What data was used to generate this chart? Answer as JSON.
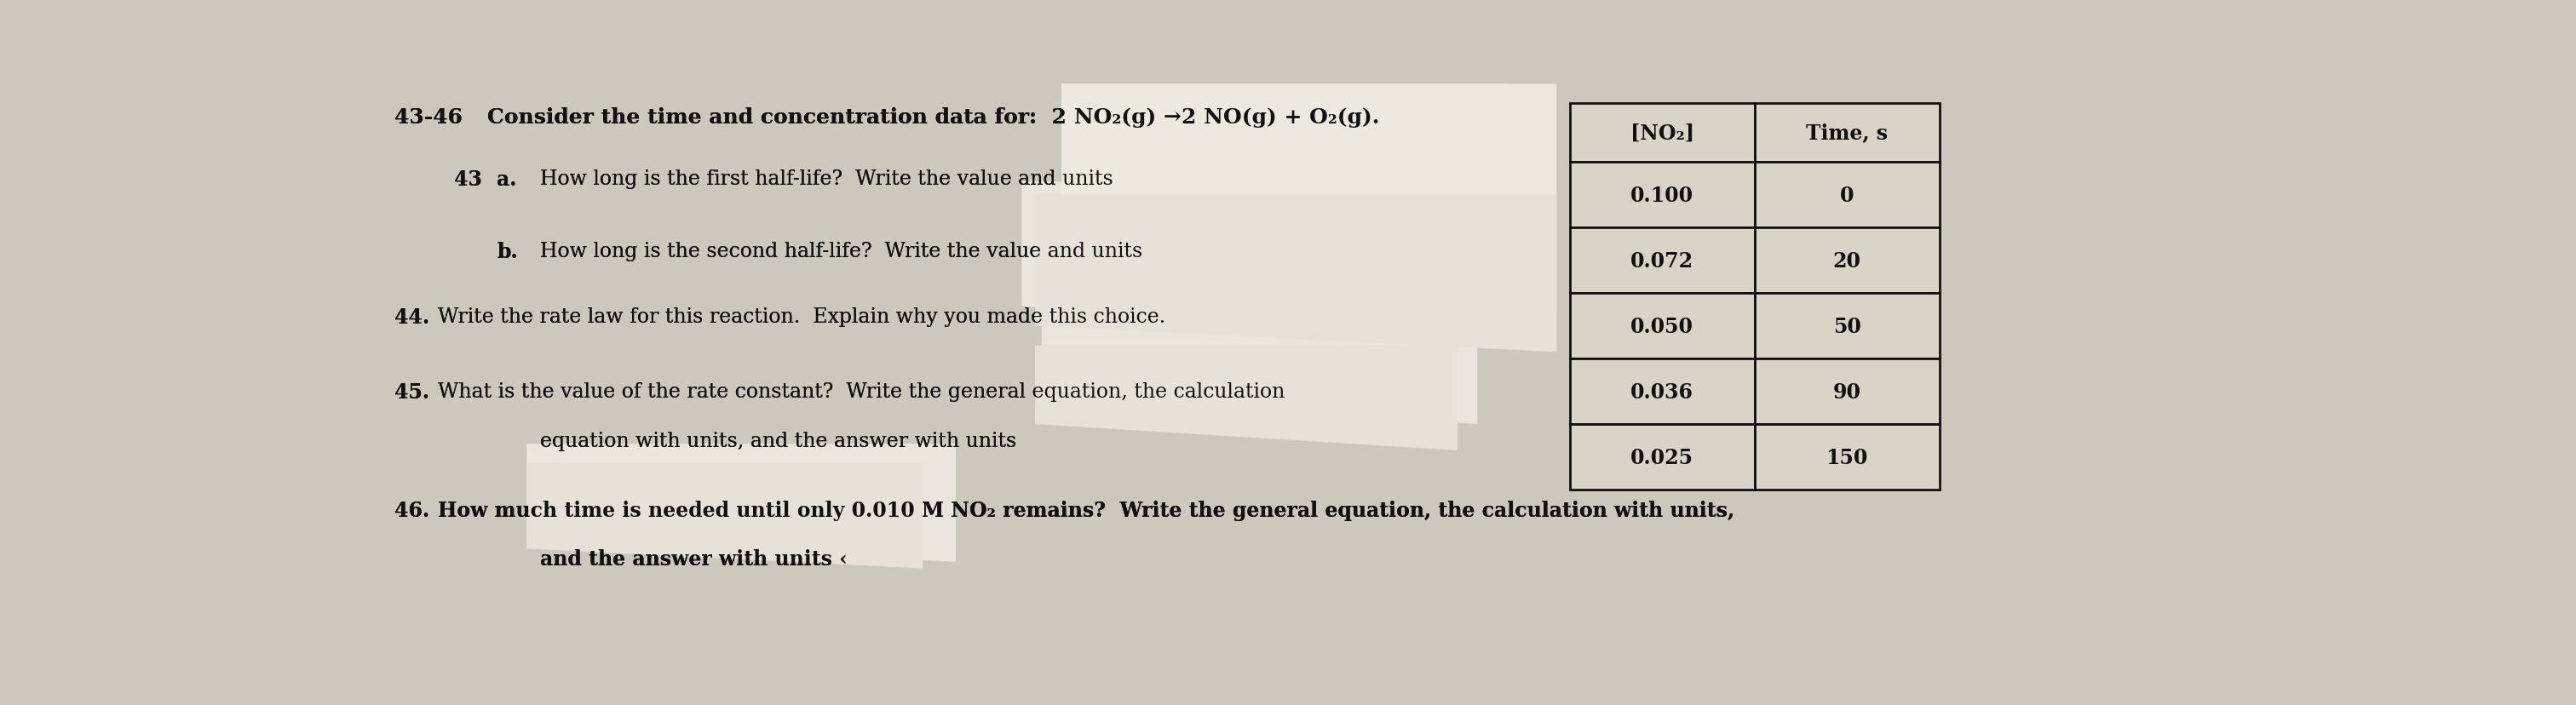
{
  "bg_color": "#cbc8be",
  "title_number": "43-46",
  "title_text": "Consider the time and concentration data for:  2 NO₂(g) →2 NO(g) + O₂(g).",
  "q43_number": "43",
  "q43a_label": "a.",
  "q43a_text": "How long is the first half-life?  Write the value and units",
  "q43b_label": "b.",
  "q43b_text": "How long is the second half-life?  Write the value and units",
  "q44_number": "44.",
  "q44_text": "Write the rate law for this reaction.  Explain why you made this choice.",
  "q45_number": "45.",
  "q45_text": "What is the value of the rate constant?  Write the general equation, the calculation",
  "q45_text2": "equation with units, and the answer with units",
  "q46_number": "46.",
  "q46_text": "How much time is needed until only 0.010 M NO₂ remains?  Write the general equation, the calculation with units,",
  "q46_text2": "and the answer with units ‹",
  "table_header_col1": "[NO₂]",
  "table_header_col2": "Time, s",
  "table_data": [
    [
      "0.100",
      "0"
    ],
    [
      "0.072",
      "20"
    ],
    [
      "0.050",
      "50"
    ],
    [
      "0.036",
      "90"
    ],
    [
      "0.025",
      "150"
    ]
  ],
  "font_size_title": 18,
  "font_size_body": 17,
  "font_size_num": 17,
  "text_color": "#111111",
  "table_bg": "#d8d4c8",
  "table_border_color": "#111111",
  "slip_color": "#e8e4dc",
  "slip_color2": "#dedad2"
}
